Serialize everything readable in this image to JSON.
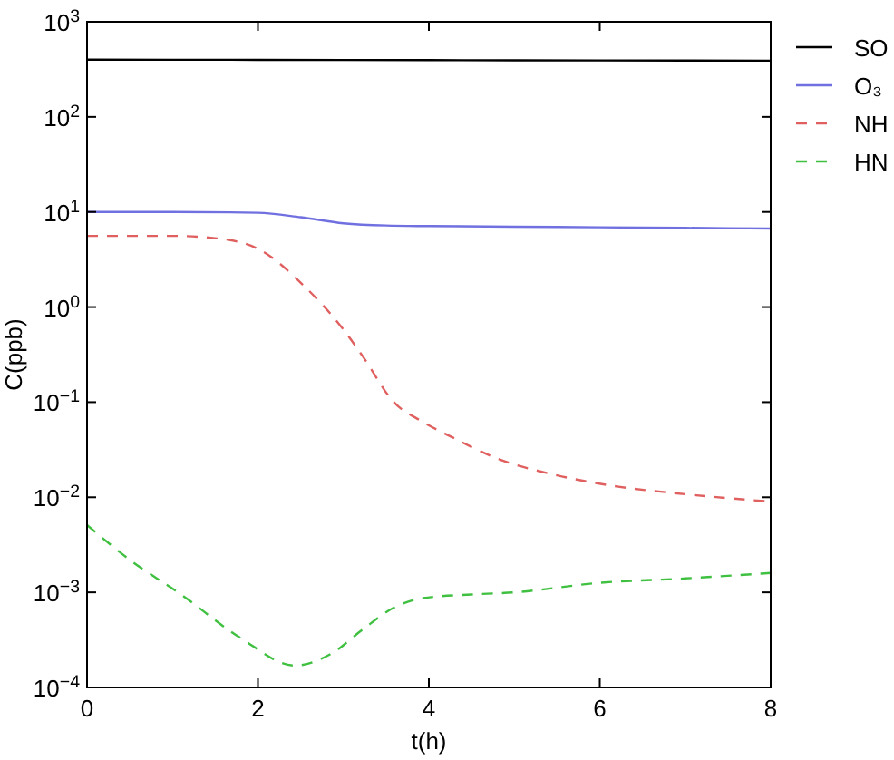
{
  "chart_data": {
    "type": "line",
    "xlabel": "t(h)",
    "ylabel": "C(ppb)",
    "log": "y",
    "legend": "top right",
    "grid": false,
    "xlim": [
      0,
      8
    ],
    "xticks": [
      0,
      2,
      4,
      6,
      8
    ],
    "ylim": [
      0.0001,
      1000
    ],
    "yticks": [
      {
        "value": 0.0001,
        "label": "10$^{−4}$"
      },
      {
        "value": 0.001,
        "label": "10$^{−3}$"
      },
      {
        "value": 0.01,
        "label": "10$^{−2}$"
      },
      {
        "value": 0.1,
        "label": "10$^{−1}$"
      },
      {
        "value": 1,
        "label": "10$^{0}$"
      },
      {
        "value": 10,
        "label": "10$^{1}$"
      },
      {
        "value": 100,
        "label": "10$^{2}$"
      },
      {
        "value": 1000,
        "label": "10$^{3}$"
      }
    ],
    "series": [
      {
        "name": "SO",
        "color": "#000000",
        "line_style": "solid",
        "x": [
          0,
          2,
          4,
          6,
          8
        ],
        "values": [
          400,
          398,
          395,
          392,
          390
        ]
      },
      {
        "name": "O₃",
        "color": "#7070e0",
        "line_style": "solid",
        "x": [
          0,
          1,
          2,
          2.5,
          3,
          3.5,
          4,
          5,
          6,
          7,
          8
        ],
        "values": [
          10,
          10,
          9.8,
          8.8,
          7.6,
          7.2,
          7.1,
          7,
          6.9,
          6.8,
          6.7
        ]
      },
      {
        "name": "NH",
        "color": "#e06060",
        "line_style": "dashed",
        "x": [
          0,
          1,
          1.5,
          2,
          2.53,
          3.02,
          3.23,
          3.59,
          3.93,
          4.29,
          4.78,
          5.5,
          6.2,
          6.9,
          8
        ],
        "values": [
          5.6,
          5.6,
          5.3,
          4.1,
          1.7,
          0.55,
          0.3,
          0.1,
          0.062,
          0.042,
          0.026,
          0.017,
          0.013,
          0.011,
          0.009
        ]
      },
      {
        "name": "HN",
        "color": "#40c040",
        "line_style": "dashed",
        "x": [
          0,
          0.5,
          1.1,
          1.8,
          2.43,
          2.87,
          3.23,
          3.59,
          3.93,
          4.5,
          5,
          6,
          7,
          8
        ],
        "values": [
          0.0051,
          0.0022,
          0.00095,
          0.00033,
          0.00017,
          0.00023,
          0.00041,
          0.00069,
          0.00087,
          0.00095,
          0.001,
          0.00126,
          0.0014,
          0.0016
        ]
      }
    ]
  }
}
